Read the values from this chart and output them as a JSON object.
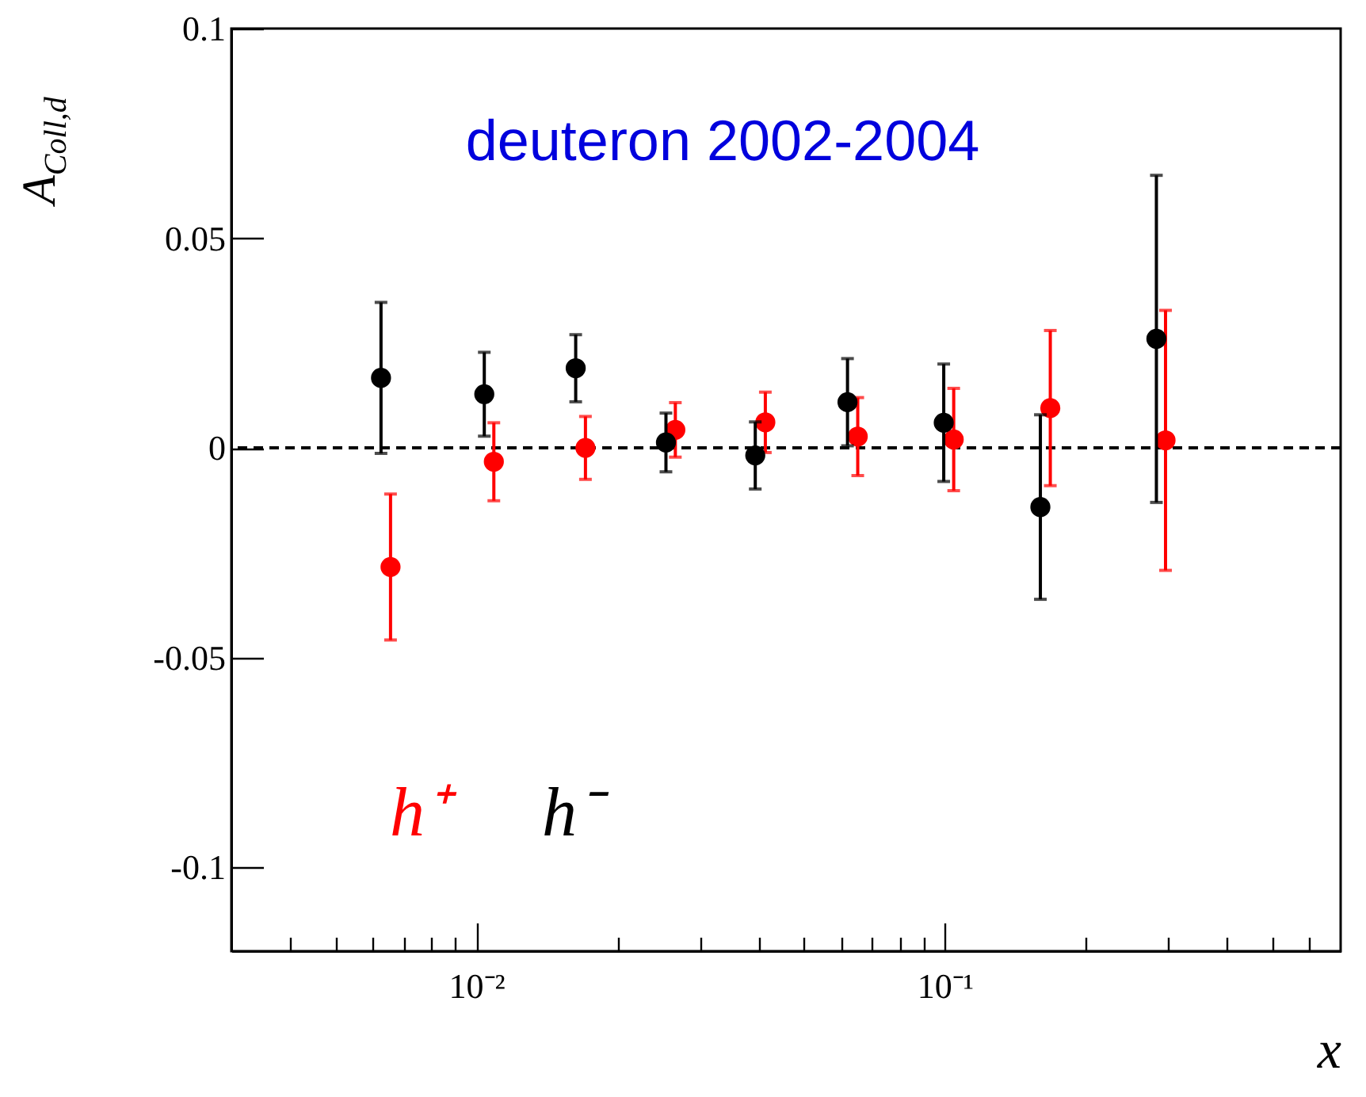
{
  "chart_data": {
    "type": "scatter",
    "xlabel": "x",
    "ylabel": "A$_{Coll,d}$",
    "log": "x",
    "marker": "circle",
    "grid": false,
    "annotations": [
      "deuteron 2002-2004"
    ],
    "xlim": [
      0.003,
      0.7
    ],
    "xticks": [
      {
        "value": 0.004,
        "label": null
      },
      {
        "value": 0.005,
        "label": null
      },
      {
        "value": 0.006,
        "label": null
      },
      {
        "value": 0.007,
        "label": null
      },
      {
        "value": 0.008,
        "label": null
      },
      {
        "value": 0.009,
        "label": null
      },
      {
        "value": 0.01,
        "label": "10⁻²"
      },
      {
        "value": 0.02,
        "label": null
      },
      {
        "value": 0.03,
        "label": null
      },
      {
        "value": 0.04,
        "label": null
      },
      {
        "value": 0.05,
        "label": null
      },
      {
        "value": 0.06,
        "label": null
      },
      {
        "value": 0.07,
        "label": null
      },
      {
        "value": 0.08,
        "label": null
      },
      {
        "value": 0.09,
        "label": null
      },
      {
        "value": 0.1,
        "label": "10⁻¹"
      },
      {
        "value": 0.2,
        "label": null
      },
      {
        "value": 0.3,
        "label": null
      },
      {
        "value": 0.4,
        "label": null
      },
      {
        "value": 0.5,
        "label": null
      },
      {
        "value": 0.6,
        "label": null
      }
    ],
    "ylim": [
      -0.12,
      0.1
    ],
    "yticks": [
      -0.1,
      -0.05,
      0,
      0.05,
      0.1
    ],
    "ref_lines": [
      {
        "axis": "y",
        "value": 0,
        "color": "#000000",
        "line_style": "dashed"
      }
    ],
    "series": [
      {
        "name": "h⁺",
        "color": "#ff0000",
        "x": [
          0.00656,
          0.0109,
          0.0171,
          0.0266,
          0.0414,
          0.0652,
          0.1045,
          0.168,
          0.296
        ],
        "values": [
          -0.0284,
          -0.0033,
          0,
          0.0043,
          0.0061,
          0.0027,
          0.002,
          0.0095,
          0.0018
        ],
        "errors": [
          0.0174,
          0.0093,
          0.0075,
          0.0065,
          0.0072,
          0.0093,
          0.0122,
          0.0185,
          0.031
        ]
      },
      {
        "name": "h⁻",
        "color": "#000000",
        "x": [
          0.00626,
          0.0104,
          0.0163,
          0.0254,
          0.0394,
          0.062,
          0.0995,
          0.16,
          0.283
        ],
        "values": [
          0.0167,
          0.0128,
          0.019,
          0.0013,
          -0.0018,
          0.0109,
          0.006,
          -0.0141,
          0.026
        ],
        "errors": [
          0.018,
          0.01,
          0.008,
          0.007,
          0.008,
          0.0104,
          0.014,
          0.022,
          0.039
        ]
      }
    ]
  }
}
